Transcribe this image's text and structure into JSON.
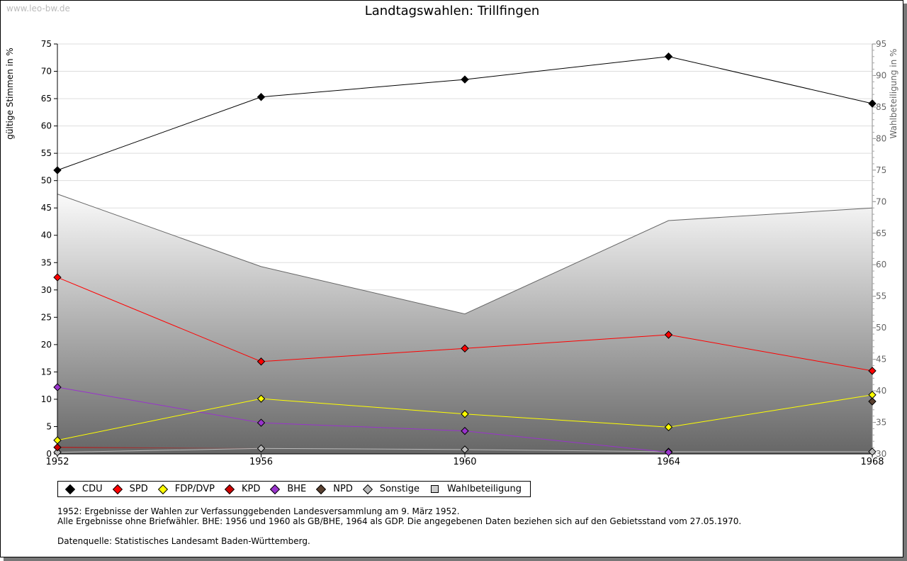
{
  "watermark": "www.leo-bw.de",
  "chart_data": {
    "type": "line",
    "title": "Landtagswahlen: Trillfingen",
    "ylabel": "gültige Stimmen in %",
    "y2label": "Wahlbeteiligung in %",
    "x": [
      "1952",
      "1956",
      "1960",
      "1964",
      "1968"
    ],
    "ylim": [
      0,
      75
    ],
    "yticks": [
      0,
      5,
      10,
      15,
      20,
      25,
      30,
      35,
      40,
      45,
      50,
      55,
      60,
      65,
      70,
      75
    ],
    "y2lim": [
      30,
      95
    ],
    "y2ticks": [
      30,
      35,
      40,
      45,
      50,
      55,
      60,
      65,
      70,
      75,
      80,
      85,
      90,
      95
    ],
    "grid": true,
    "series": [
      {
        "name": "CDU",
        "color": "#000000",
        "values": [
          51.9,
          65.3,
          68.5,
          72.7,
          64.1
        ]
      },
      {
        "name": "SPD",
        "color": "#ff0000",
        "values": [
          32.3,
          16.9,
          19.3,
          21.8,
          15.2
        ]
      },
      {
        "name": "FDP/DVP",
        "color": "#ffff00",
        "values": [
          2.5,
          10.1,
          7.3,
          4.9,
          10.8
        ]
      },
      {
        "name": "KPD",
        "color": "#cc0000",
        "values": [
          1.2,
          null,
          null,
          null,
          null
        ]
      },
      {
        "name": "BHE",
        "color": "#9933cc",
        "values": [
          12.2,
          5.7,
          4.2,
          0.3,
          null
        ]
      },
      {
        "name": "NPD",
        "color": "#5a4030",
        "values": [
          null,
          null,
          null,
          null,
          9.6
        ]
      },
      {
        "name": "Sonstige",
        "color": "#bbbbbb",
        "values": [
          0.3,
          1.0,
          0.8,
          0.4,
          0.4
        ]
      }
    ],
    "turnout": {
      "name": "Wahlbeteiligung",
      "axis": "right",
      "values": [
        71.2,
        59.7,
        52.2,
        67.0,
        69.0
      ]
    },
    "legend_position": "bottom"
  },
  "notes": [
    "1952: Ergebnisse der Wahlen zur Verfassunggebenden Landesversammlung am 9. März 1952.",
    "Alle Ergebnisse ohne Briefwähler. BHE: 1956 und 1960 als GB/BHE, 1964 als GDP. Die angegebenen Daten beziehen sich auf den Gebietsstand vom 27.05.1970.",
    "Datenquelle: Statistisches Landesamt Baden-Württemberg."
  ]
}
